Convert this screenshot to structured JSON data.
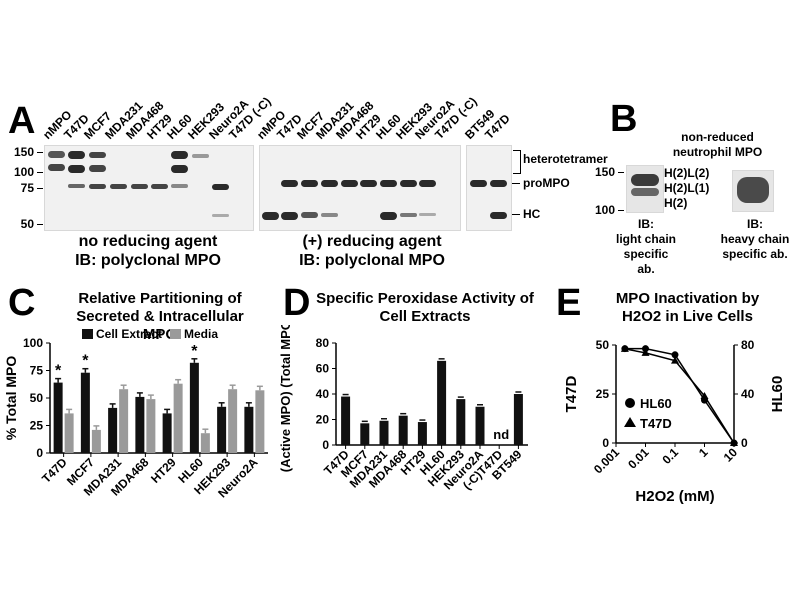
{
  "panel_a": {
    "label": "A",
    "gel1_lanes": [
      "nMPO",
      "T47D",
      "MCF7",
      "MDA231",
      "MDA468",
      "HT29",
      "HL60",
      "HEK293",
      "Neuro2A",
      "T47D (-C)"
    ],
    "gel2_lanes": [
      "nMPO",
      "T47D",
      "MCF7",
      "MDA231",
      "MDA468",
      "HT29",
      "HL60",
      "HEK293",
      "Neuro2A",
      "T47D (-C)"
    ],
    "gel3_lanes": [
      "BT549",
      "T47D"
    ],
    "mw_markers": [
      "150",
      "100",
      "75",
      "50"
    ],
    "band_labels": {
      "heterotetramer": "heterotetramer",
      "promo": "proMPO",
      "hc": "HC"
    },
    "caption_left": [
      "no reducing agent",
      "IB: polyclonal MPO"
    ],
    "caption_right": [
      "(+) reducing agent",
      "IB: polyclonal MPO"
    ]
  },
  "panel_b": {
    "label": "B",
    "title": [
      "non-reduced",
      "neutrophil MPO"
    ],
    "mw_markers": [
      "150",
      "100"
    ],
    "forms": [
      "H(2)L(2)",
      "H(2)L(1)",
      "H(2)"
    ],
    "caption_left": [
      "IB:",
      "light chain",
      "specific ab."
    ],
    "caption_right": [
      "IB:",
      "heavy chain",
      "specific ab."
    ]
  },
  "panel_c": {
    "label": "C"
  },
  "panel_d": {
    "label": "D"
  },
  "panel_e": {
    "label": "E"
  },
  "chart_data": [
    {
      "type": "bar",
      "title": "Relative Partitioning of Secreted & Intracellular MPO",
      "ylabel": "% Total MPO",
      "ylim": [
        0,
        100
      ],
      "yticks": [
        "0",
        "25",
        "50",
        "75",
        "100"
      ],
      "categories": [
        "T47D",
        "MCF7",
        "MDA231",
        "MDA468",
        "HT29",
        "HL60",
        "HEK293",
        "Neuro2A"
      ],
      "series": [
        {
          "name": "Cell Extract",
          "color": "#111111",
          "values": [
            64,
            73,
            41,
            51,
            36,
            82,
            42,
            42
          ]
        },
        {
          "name": "Media",
          "color": "#9a9a9a",
          "values": [
            36,
            21,
            58,
            49,
            63,
            18,
            58,
            57
          ]
        }
      ],
      "annotations": [
        "*",
        "*",
        "*"
      ],
      "legend_position": "top"
    },
    {
      "type": "bar",
      "title": "Specific Peroxidase Activity of Cell Extracts",
      "ylabel": "(Active MPO) (Total MPO)",
      "ylim": [
        0,
        80
      ],
      "yticks": [
        "0",
        "20",
        "40",
        "60",
        "80"
      ],
      "categories": [
        "T47D",
        "MCF7",
        "MDA231",
        "MDA468",
        "HT29",
        "HL60",
        "HEK293",
        "Neuro2A",
        "(-C)T47D",
        "BT549"
      ],
      "values": [
        38,
        17,
        19,
        23,
        18,
        66,
        36,
        30,
        null,
        40
      ],
      "annotation": "nd"
    },
    {
      "type": "line",
      "title": "MPO Inactivation by H2O2 in Live Cells",
      "xlabel": "H2O2 (mM)",
      "x_scale": "log",
      "xticks": [
        "0.001",
        "0.01",
        "0.1",
        "1",
        "10"
      ],
      "left_axis": {
        "label": "T47D",
        "ylim": [
          0,
          50
        ],
        "ticks": [
          "0",
          "25",
          "50"
        ]
      },
      "right_axis": {
        "label": "HL60",
        "ylim": [
          0,
          80
        ],
        "ticks": [
          "0",
          "40",
          "80"
        ]
      },
      "series": [
        {
          "name": "HL60",
          "marker": "circle",
          "axis": "right",
          "x": [
            0.002,
            0.01,
            0.1,
            1,
            10
          ],
          "y": [
            77,
            77,
            72,
            35,
            0
          ]
        },
        {
          "name": "T47D",
          "marker": "triangle",
          "axis": "left",
          "x": [
            0.002,
            0.01,
            0.1,
            1,
            10
          ],
          "y": [
            48,
            46,
            42,
            24,
            0
          ]
        }
      ]
    }
  ]
}
